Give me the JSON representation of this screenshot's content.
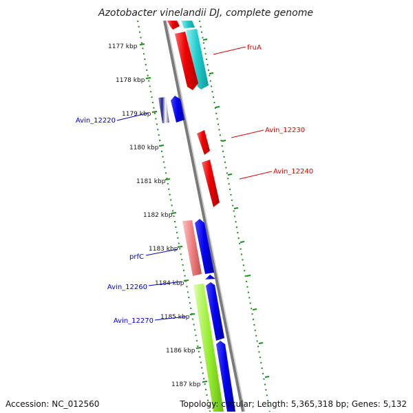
{
  "title": "Azotobacter vinelandii DJ, complete genome",
  "ticks": [
    "1177 kbp",
    "1178 kbp",
    "1179 kbp",
    "1180 kbp",
    "1181 kbp",
    "1182 kbp",
    "1183 kbp",
    "1184 kbp",
    "1185 kbp",
    "1186 kbp",
    "1187 kbp"
  ],
  "gene_labels": [
    {
      "id": "fruA",
      "text": "fruA",
      "color": "#dd0000"
    },
    {
      "id": "avin-12230",
      "text": "Avin_12230",
      "color": "#dd0000"
    },
    {
      "id": "avin-12240",
      "text": "Avin_12240",
      "color": "#dd0000"
    },
    {
      "id": "avin-12220",
      "text": "Avin_12220",
      "color": "#0000cc"
    },
    {
      "id": "prfc",
      "text": "prfC",
      "color": "#0000cc"
    },
    {
      "id": "avin-12260",
      "text": "Avin_12260",
      "color": "#0000cc"
    },
    {
      "id": "avin-12270",
      "text": "Avin_12270",
      "color": "#0000cc"
    }
  ],
  "footer": {
    "accession": "Accession: NC_012560",
    "stats": "Topology: circular; Length: 5,365,318 bp; Genes: 5,132"
  },
  "colors": {
    "forward_gene": "#0000ee",
    "reverse_gene": "#ee0000",
    "cyan_track": "#22cccc",
    "pink_track": "#f08080",
    "green_track": "#99ee33",
    "backbone": "#888888",
    "tick_dots": "#1a8a1a"
  }
}
